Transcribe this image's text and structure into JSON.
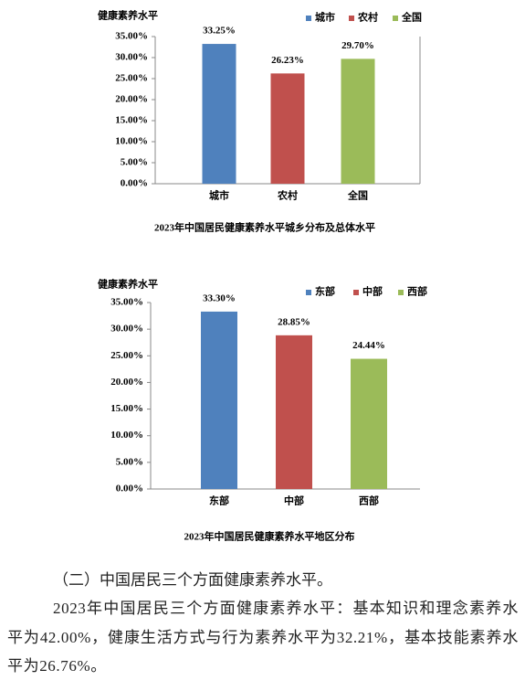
{
  "chart_data": [
    {
      "type": "bar",
      "y_label": "健康素养水平",
      "caption": "2023年中国居民健康素养水平城乡分布及总体水平",
      "categories": [
        "城市",
        "农村",
        "全国"
      ],
      "values": [
        33.25,
        26.23,
        29.7
      ],
      "value_labels": [
        "33.25%",
        "26.23%",
        "29.70%"
      ],
      "colors": [
        "#4f81bd",
        "#c0504d",
        "#9bbb59"
      ],
      "ylim": [
        0,
        35
      ],
      "yticks": [
        {
          "value": 0,
          "label": "0.00%"
        },
        {
          "value": 5,
          "label": "5.00%"
        },
        {
          "value": 10,
          "label": "10.00%"
        },
        {
          "value": 15,
          "label": "15.00%"
        },
        {
          "value": 20,
          "label": "20.00%"
        },
        {
          "value": 25,
          "label": "25.00%"
        },
        {
          "value": 30,
          "label": "30.00%"
        },
        {
          "value": 35,
          "label": "35.00%"
        }
      ],
      "legend": "top-right"
    },
    {
      "type": "bar",
      "y_label": "健康素养水平",
      "caption": "2023年中国居民健康素养水平地区分布",
      "categories": [
        "东部",
        "中部",
        "西部"
      ],
      "values": [
        33.3,
        28.85,
        24.44
      ],
      "value_labels": [
        "33.30%",
        "28.85%",
        "24.44%"
      ],
      "colors": [
        "#4f81bd",
        "#c0504d",
        "#9bbb59"
      ],
      "ylim": [
        0,
        35
      ],
      "yticks": [
        {
          "value": 0,
          "label": "0.00%"
        },
        {
          "value": 5,
          "label": "5.00%"
        },
        {
          "value": 10,
          "label": "10.00%"
        },
        {
          "value": 15,
          "label": "15.00%"
        },
        {
          "value": 20,
          "label": "20.00%"
        },
        {
          "value": 25,
          "label": "25.00%"
        },
        {
          "value": 30,
          "label": "30.00%"
        },
        {
          "value": 35,
          "label": "35.00%"
        }
      ],
      "legend": "top-right"
    }
  ],
  "section_heading": "（二）中国居民三个方面健康素养水平。",
  "paragraph": "2023年中国居民三个方面健康素养水平：基本知识和理念素养水平为42.00%，健康生活方式与行为素养水平为32.21%，基本技能素养水平为26.76%。"
}
